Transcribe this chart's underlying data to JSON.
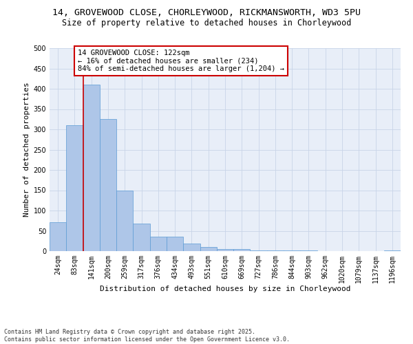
{
  "title_line1": "14, GROVEWOOD CLOSE, CHORLEYWOOD, RICKMANSWORTH, WD3 5PU",
  "title_line2": "Size of property relative to detached houses in Chorleywood",
  "xlabel": "Distribution of detached houses by size in Chorleywood",
  "ylabel": "Number of detached properties",
  "categories": [
    "24sqm",
    "83sqm",
    "141sqm",
    "200sqm",
    "259sqm",
    "317sqm",
    "376sqm",
    "434sqm",
    "493sqm",
    "551sqm",
    "610sqm",
    "669sqm",
    "727sqm",
    "786sqm",
    "844sqm",
    "903sqm",
    "962sqm",
    "1020sqm",
    "1079sqm",
    "1137sqm",
    "1196sqm"
  ],
  "values": [
    71,
    311,
    410,
    325,
    149,
    68,
    36,
    35,
    18,
    11,
    5,
    5,
    2,
    2,
    1,
    1,
    0,
    0,
    0,
    0,
    1
  ],
  "bar_color": "#aec6e8",
  "bar_edge_color": "#5b9bd5",
  "vline_color": "#cc0000",
  "vline_x": 1.5,
  "annotation_title": "14 GROVEWOOD CLOSE: 122sqm",
  "annotation_line2": "← 16% of detached houses are smaller (234)",
  "annotation_line3": "84% of semi-detached houses are larger (1,204) →",
  "annotation_box_color": "#cc0000",
  "annotation_bg": "#ffffff",
  "ylim": [
    0,
    500
  ],
  "yticks": [
    0,
    50,
    100,
    150,
    200,
    250,
    300,
    350,
    400,
    450,
    500
  ],
  "grid_color": "#c8d4e8",
  "bg_color": "#e8eef8",
  "footnote_line1": "Contains HM Land Registry data © Crown copyright and database right 2025.",
  "footnote_line2": "Contains public sector information licensed under the Open Government Licence v3.0.",
  "title_fontsize": 9.5,
  "subtitle_fontsize": 8.5,
  "axis_label_fontsize": 8,
  "tick_fontsize": 7,
  "annotation_fontsize": 7.5,
  "footnote_fontsize": 6
}
